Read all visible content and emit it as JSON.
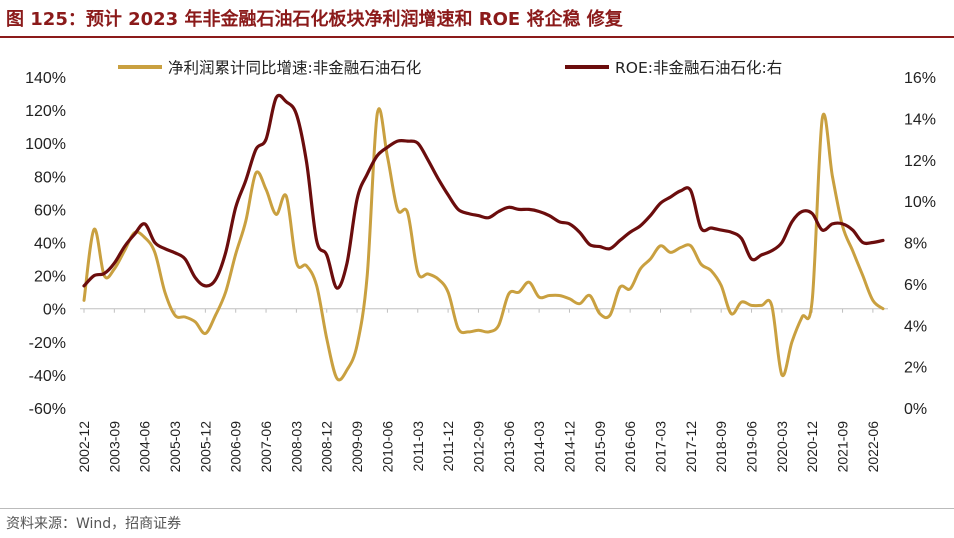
{
  "header": {
    "title": "图 125：预计 2023 年非金融石油石化板块净利润增速和 ROE 将企稳 修复"
  },
  "footer": {
    "source": "资料来源：Wind，招商证券"
  },
  "chart_data": {
    "type": "line",
    "title": "图 125：预计 2023 年非金融石油石化板块净利润增速和 ROE 将企稳 修复",
    "x_tick_labels": [
      "2002-12",
      "2003-09",
      "2004-06",
      "2005-03",
      "2005-12",
      "2006-09",
      "2007-06",
      "2008-03",
      "2008-12",
      "2009-09",
      "2010-06",
      "2011-03",
      "2011-12",
      "2012-09",
      "2013-06",
      "2014-03",
      "2014-12",
      "2015-09",
      "2016-06",
      "2017-03",
      "2017-12",
      "2018-09",
      "2019-06",
      "2020-03",
      "2020-12",
      "2021-09",
      "2022-06"
    ],
    "y_left": {
      "ticks": [
        "-60%",
        "-40%",
        "-20%",
        "0%",
        "20%",
        "40%",
        "60%",
        "80%",
        "100%",
        "120%",
        "140%"
      ],
      "range": [
        -60,
        140
      ],
      "unit": "%"
    },
    "y_right": {
      "ticks": [
        "0%",
        "2%",
        "4%",
        "6%",
        "8%",
        "10%",
        "12%",
        "14%",
        "16%"
      ],
      "range": [
        0,
        16
      ],
      "unit": "%"
    },
    "grid": false,
    "legend_position": "top",
    "series": [
      {
        "name": "净利润累计同比增速:非金融石油石化",
        "axis": "left",
        "color": "#C9A040",
        "x": [
          "2002-12",
          "2003-03",
          "2003-06",
          "2003-09",
          "2003-12",
          "2004-03",
          "2004-06",
          "2004-09",
          "2004-12",
          "2005-03",
          "2005-06",
          "2005-09",
          "2005-12",
          "2006-03",
          "2006-06",
          "2006-09",
          "2006-12",
          "2007-03",
          "2007-06",
          "2007-09",
          "2007-12",
          "2008-03",
          "2008-06",
          "2008-09",
          "2008-12",
          "2009-03",
          "2009-06",
          "2009-09",
          "2009-12",
          "2010-03",
          "2010-06",
          "2010-09",
          "2010-12",
          "2011-03",
          "2011-06",
          "2011-09",
          "2011-12",
          "2012-03",
          "2012-06",
          "2012-09",
          "2012-12",
          "2013-03",
          "2013-06",
          "2013-09",
          "2013-12",
          "2014-03",
          "2014-06",
          "2014-09",
          "2014-12",
          "2015-03",
          "2015-06",
          "2015-09",
          "2015-12",
          "2016-03",
          "2016-06",
          "2016-09",
          "2016-12",
          "2017-03",
          "2017-06",
          "2017-09",
          "2017-12",
          "2018-03",
          "2018-06",
          "2018-09",
          "2018-12",
          "2019-03",
          "2019-06",
          "2019-09",
          "2019-12",
          "2020-03",
          "2020-06",
          "2020-09",
          "2020-12",
          "2021-03",
          "2021-06",
          "2021-09",
          "2021-12",
          "2022-03",
          "2022-06",
          "2022-09"
        ],
        "values": [
          5,
          48,
          20,
          24,
          35,
          46,
          43,
          34,
          10,
          -4,
          -5,
          -8,
          -15,
          -4,
          10,
          33,
          53,
          82,
          72,
          57,
          68,
          28,
          26,
          14,
          -18,
          -42,
          -37,
          -22,
          20,
          118,
          92,
          60,
          58,
          22,
          21,
          18,
          10,
          -12,
          -14,
          -13,
          -14,
          -10,
          9,
          10,
          16,
          7,
          8,
          8,
          6,
          3,
          8,
          -3,
          -4,
          13,
          12,
          24,
          30,
          38,
          34,
          37,
          38,
          27,
          23,
          14,
          -3,
          4,
          2,
          2,
          2,
          -40,
          -20,
          -5,
          5,
          115,
          80,
          50,
          35,
          20,
          5,
          0
        ]
      },
      {
        "name": "ROE:非金融石油石化:右",
        "axis": "right",
        "color": "#6B0D0D",
        "x": [
          "2002-12",
          "2003-03",
          "2003-06",
          "2003-09",
          "2003-12",
          "2004-03",
          "2004-06",
          "2004-09",
          "2004-12",
          "2005-03",
          "2005-06",
          "2005-09",
          "2005-12",
          "2006-03",
          "2006-06",
          "2006-09",
          "2006-12",
          "2007-03",
          "2007-06",
          "2007-09",
          "2007-12",
          "2008-03",
          "2008-06",
          "2008-09",
          "2008-12",
          "2009-03",
          "2009-06",
          "2009-09",
          "2009-12",
          "2010-03",
          "2010-06",
          "2010-09",
          "2010-12",
          "2011-03",
          "2011-06",
          "2011-09",
          "2011-12",
          "2012-03",
          "2012-06",
          "2012-09",
          "2012-12",
          "2013-03",
          "2013-06",
          "2013-09",
          "2013-12",
          "2014-03",
          "2014-06",
          "2014-09",
          "2014-12",
          "2015-03",
          "2015-06",
          "2015-09",
          "2015-12",
          "2016-03",
          "2016-06",
          "2016-09",
          "2016-12",
          "2017-03",
          "2017-06",
          "2017-09",
          "2017-12",
          "2018-03",
          "2018-06",
          "2018-09",
          "2018-12",
          "2019-03",
          "2019-06",
          "2019-09",
          "2019-12",
          "2020-03",
          "2020-06",
          "2020-09",
          "2020-12",
          "2021-03",
          "2021-06",
          "2021-09",
          "2021-12",
          "2022-03",
          "2022-06",
          "2022-09"
        ],
        "values": [
          5.9,
          6.4,
          6.5,
          7.0,
          7.8,
          8.4,
          8.9,
          8.0,
          7.7,
          7.5,
          7.2,
          6.3,
          5.9,
          6.2,
          7.5,
          9.7,
          11.0,
          12.5,
          13.0,
          15.0,
          14.8,
          14.2,
          11.9,
          8.1,
          7.4,
          5.8,
          7.0,
          10.1,
          11.3,
          12.2,
          12.6,
          12.9,
          12.9,
          12.8,
          12.0,
          11.1,
          10.3,
          9.6,
          9.4,
          9.3,
          9.2,
          9.5,
          9.7,
          9.6,
          9.6,
          9.5,
          9.3,
          9.0,
          8.9,
          8.5,
          7.9,
          7.8,
          7.7,
          8.1,
          8.5,
          8.8,
          9.3,
          9.9,
          10.2,
          10.5,
          10.5,
          8.7,
          8.7,
          8.6,
          8.5,
          8.2,
          7.2,
          7.4,
          7.6,
          8.0,
          9.0,
          9.5,
          9.4,
          8.6,
          8.9,
          8.9,
          8.6,
          8.0,
          8.0,
          8.1
        ]
      }
    ]
  }
}
